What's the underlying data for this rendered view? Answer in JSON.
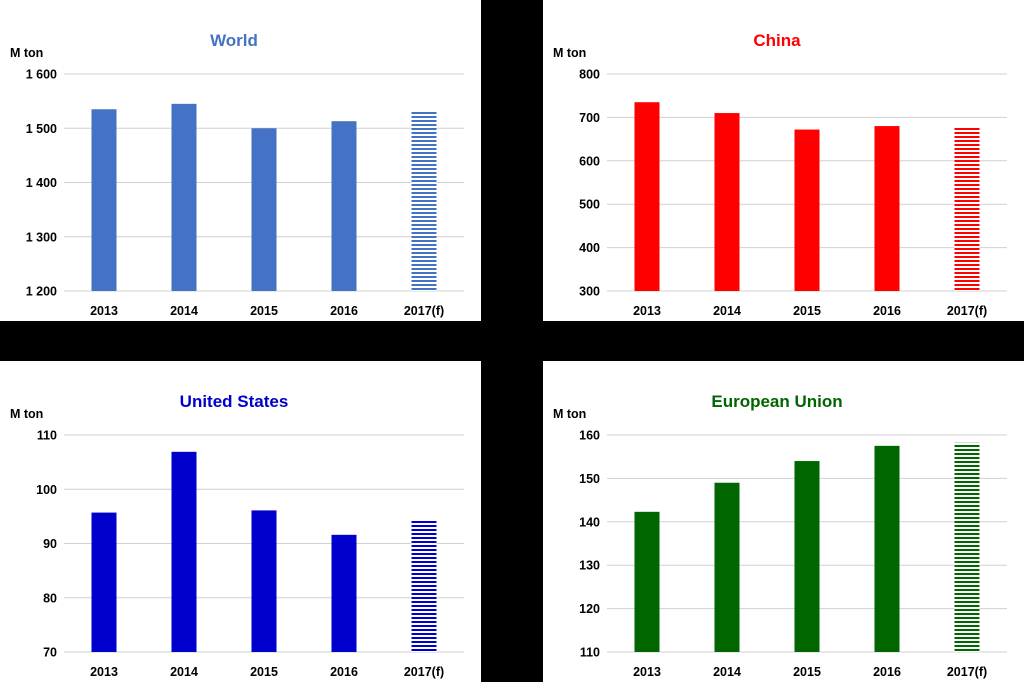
{
  "chart_data": [
    {
      "type": "bar",
      "title": "World",
      "title_color": "#4472C4",
      "bar_color": "#4472C4",
      "ylabel": "M ton",
      "categories": [
        "2013",
        "2014",
        "2015",
        "2016",
        "2017(f)"
      ],
      "forecast_categories": [
        "2017(f)"
      ],
      "values": [
        1535,
        1545,
        1500,
        1513,
        1533
      ],
      "ylim": [
        1200,
        1600
      ],
      "yticks": [
        1200,
        1300,
        1400,
        1500,
        1600
      ],
      "ytick_labels": [
        "1 200",
        "1 300",
        "1 400",
        "1 500",
        "1 600"
      ],
      "grid": true
    },
    {
      "type": "bar",
      "title": "China",
      "title_color": "#FF0000",
      "bar_color": "#FF0000",
      "ylabel": "M ton",
      "categories": [
        "2013",
        "2014",
        "2015",
        "2016",
        "2017(f)"
      ],
      "forecast_categories": [
        "2017(f)"
      ],
      "values": [
        735,
        710,
        672,
        680,
        680
      ],
      "ylim": [
        300,
        800
      ],
      "yticks": [
        300,
        400,
        500,
        600,
        700,
        800
      ],
      "ytick_labels": [
        "300",
        "400",
        "500",
        "600",
        "700",
        "800"
      ],
      "grid": true
    },
    {
      "type": "bar",
      "title": "United States",
      "title_color": "#0000CC",
      "bar_color": "#0000CC",
      "ylabel": "M ton",
      "categories": [
        "2013",
        "2014",
        "2015",
        "2016",
        "2017(f)"
      ],
      "forecast_categories": [
        "2017(f)"
      ],
      "values": [
        95.7,
        106.9,
        96.1,
        91.6,
        94.4
      ],
      "ylim": [
        70,
        110
      ],
      "yticks": [
        70,
        80,
        90,
        100,
        110
      ],
      "ytick_labels": [
        "70",
        "80",
        "90",
        "100",
        "110"
      ],
      "grid": true
    },
    {
      "type": "bar",
      "title": "European Union",
      "title_color": "#006600",
      "bar_color": "#006600",
      "ylabel": "M ton",
      "categories": [
        "2013",
        "2014",
        "2015",
        "2016",
        "2017(f)"
      ],
      "forecast_categories": [
        "2017(f)"
      ],
      "values": [
        142.3,
        149.0,
        154.0,
        157.5,
        158.2
      ],
      "ylim": [
        110,
        160
      ],
      "yticks": [
        110,
        120,
        130,
        140,
        150,
        160
      ],
      "ytick_labels": [
        "110",
        "120",
        "130",
        "140",
        "150",
        "160"
      ],
      "grid": true
    }
  ]
}
